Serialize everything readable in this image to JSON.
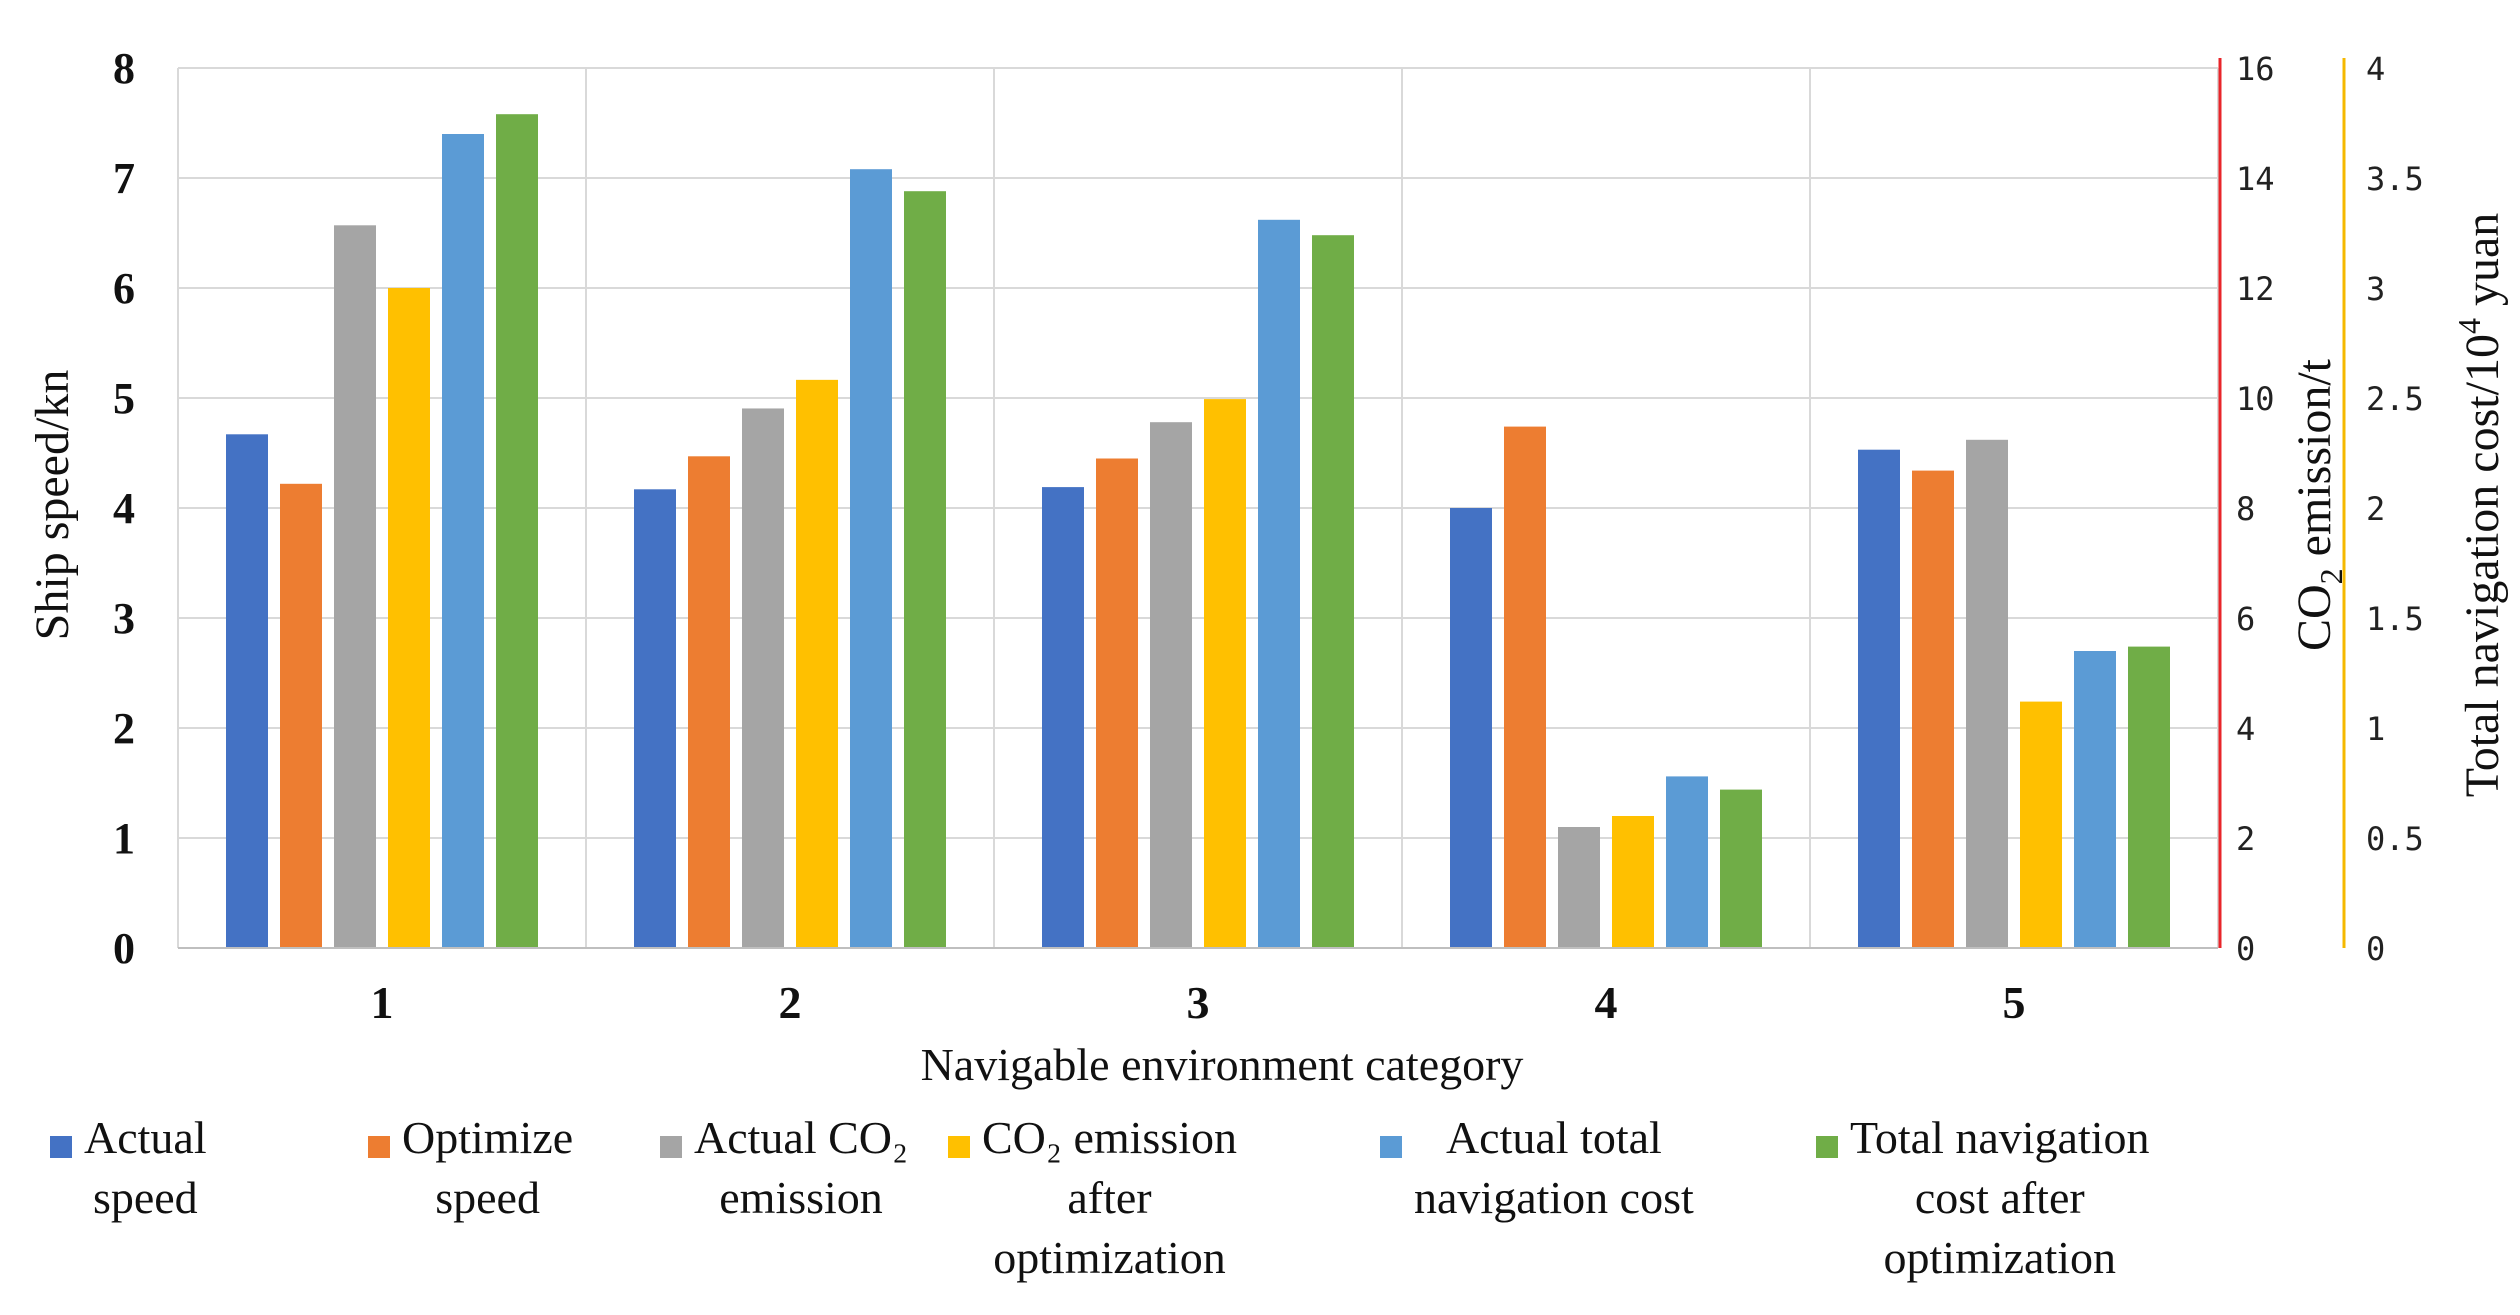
{
  "chart_data": {
    "type": "bar",
    "xlabel": "Navigable environment category",
    "categories": [
      "1",
      "2",
      "3",
      "4",
      "5"
    ],
    "axes": {
      "left": {
        "label": "Ship speed/kn",
        "ylim": [
          0,
          8
        ],
        "ticks": [
          "0",
          "1",
          "2",
          "3",
          "4",
          "5",
          "6",
          "7",
          "8"
        ]
      },
      "right1": {
        "label_main": "CO",
        "label_sub": "2",
        "label_rest": " emission/t",
        "ylim": [
          0,
          16
        ],
        "ticks": [
          "0",
          "2",
          "4",
          "6",
          "8",
          "10",
          "12",
          "14",
          "16"
        ],
        "color": "#e8252a"
      },
      "right2": {
        "label_main": "Total navigation cost/10",
        "label_sup": "4",
        "label_rest": " yuan",
        "ylim": [
          0,
          4
        ],
        "ticks": [
          "0",
          "0.5",
          "1",
          "1.5",
          "2",
          "2.5",
          "3",
          "3.5",
          "4"
        ],
        "color": "#f5b800"
      }
    },
    "series": [
      {
        "name": "Actual speed",
        "axis": "left",
        "color": "#4472c4",
        "values": [
          4.67,
          4.17,
          4.19,
          4.0,
          4.53
        ]
      },
      {
        "name": "Optimize speed",
        "axis": "left",
        "color": "#ed7d31",
        "values": [
          4.22,
          4.47,
          4.45,
          4.74,
          4.34
        ]
      },
      {
        "name": "Actual CO2 emission",
        "axis": "right1",
        "color": "#a5a5a5",
        "values": [
          13.14,
          9.81,
          9.56,
          2.2,
          9.24
        ]
      },
      {
        "name": "CO2 emission after optimization",
        "axis": "right1",
        "color": "#ffc000",
        "values": [
          12.0,
          10.33,
          9.98,
          2.4,
          4.48
        ]
      },
      {
        "name": "Actual total navigation cost",
        "axis": "right2",
        "color": "#5b9bd5",
        "values": [
          3.7,
          3.54,
          3.31,
          0.78,
          1.35
        ]
      },
      {
        "name": "Total navigation cost after optimization",
        "axis": "right2",
        "color": "#70ad47",
        "values": [
          3.79,
          3.44,
          3.24,
          0.72,
          1.37
        ]
      }
    ],
    "grid": true
  },
  "legend": [
    {
      "text": "Actual\nspeed",
      "color": "#4472c4"
    },
    {
      "text": "Optimize\nspeed",
      "color": "#ed7d31"
    },
    {
      "text": "Actual CO₂\nemission",
      "color": "#a5a5a5"
    },
    {
      "text": "CO₂ emission\nafter\noptimization",
      "color": "#ffc000"
    },
    {
      "text": "Actual total\nnavigation cost",
      "color": "#5b9bd5"
    },
    {
      "text": "Total navigation\ncost after\noptimization",
      "color": "#70ad47"
    }
  ]
}
